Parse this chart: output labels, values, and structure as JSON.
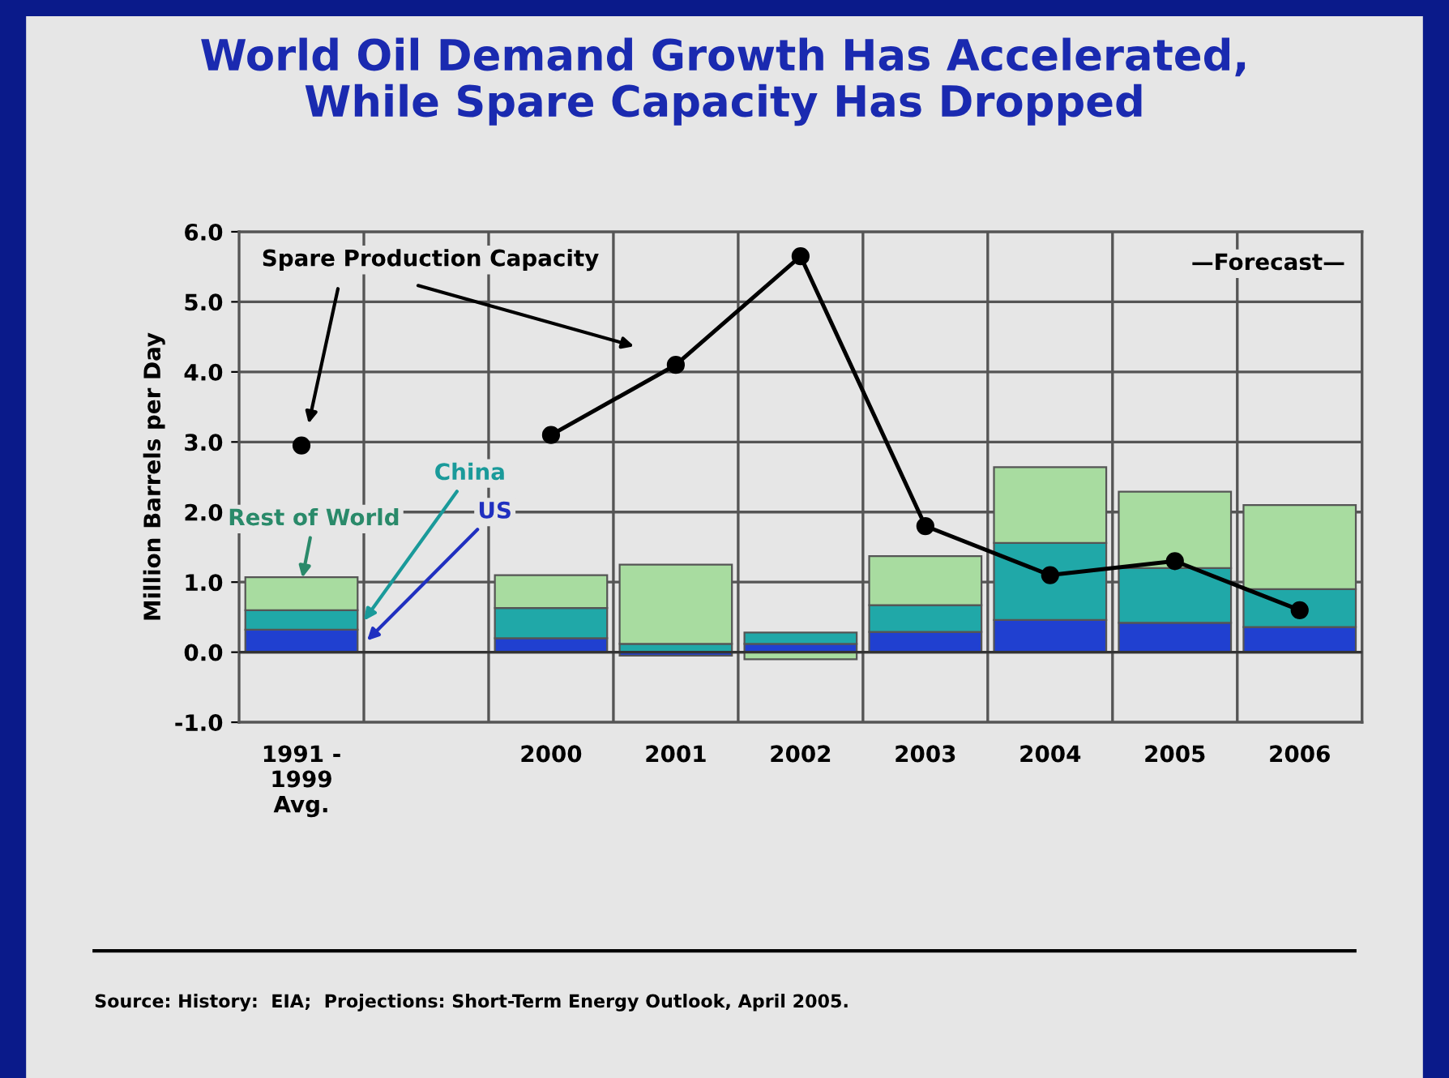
{
  "chart_data": {
    "type": "bar",
    "title": "World Oil Demand Growth Has Accelerated,\nWhile Spare Capacity Has Dropped",
    "ylabel": "Million Barrels per Day",
    "categories": [
      "1991 -\n1999\nAvg.",
      null,
      "2000",
      "2001",
      "2002",
      "2003",
      "2004",
      "2005",
      "2006"
    ],
    "stacked": true,
    "series": [
      {
        "name": "US",
        "color": "#2040d0",
        "values": [
          0.32,
          null,
          0.2,
          -0.05,
          0.12,
          0.29,
          0.46,
          0.42,
          0.36
        ]
      },
      {
        "name": "China",
        "color": "#20a8a8",
        "values": [
          0.28,
          null,
          0.43,
          0.12,
          0.16,
          0.38,
          1.1,
          0.78,
          0.54
        ]
      },
      {
        "name": "Rest of World",
        "color": "#a8dca0",
        "values": [
          0.47,
          null,
          0.47,
          1.13,
          -0.1,
          0.7,
          1.08,
          1.09,
          1.2
        ]
      },
      {
        "name": "Spare Production Capacity",
        "type": "line",
        "color": "#000000",
        "marker": "circle",
        "values": [
          2.95,
          null,
          3.1,
          4.1,
          5.65,
          1.8,
          1.1,
          1.3,
          0.6
        ]
      }
    ],
    "ylim": [
      -1.0,
      6.0
    ],
    "yticks": [
      {
        "value": -1.0,
        "label": "-1.0"
      },
      {
        "value": 0.0,
        "label": "0.0"
      },
      {
        "value": 1.0,
        "label": "1.0"
      },
      {
        "value": 2.0,
        "label": "2.0"
      },
      {
        "value": 3.0,
        "label": "3.0"
      },
      {
        "value": 4.0,
        "label": "4.0"
      },
      {
        "value": 5.0,
        "label": "5.0"
      },
      {
        "value": 6.0,
        "label": "6.0"
      }
    ],
    "grid": true,
    "legend": false,
    "annotations": [
      "—Forecast—",
      "Source: History:  EIA;  Projections: Short-Term Energy Outlook, April 2005."
    ]
  }
}
